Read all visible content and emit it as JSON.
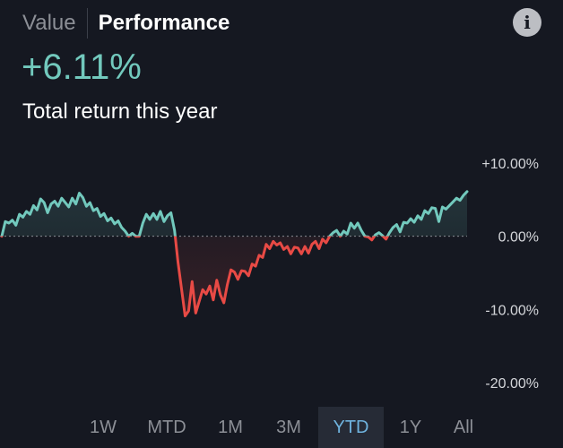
{
  "tabs": {
    "value_label": "Value",
    "performance_label": "Performance",
    "active": "Performance"
  },
  "info_button": {
    "icon": "info-icon",
    "glyph": "i"
  },
  "summary": {
    "return_value": "+6.11%",
    "caption": "Total return this year"
  },
  "colors": {
    "positive": "#72c9bd",
    "negative": "#e84a45",
    "active_range": "#6fb3de",
    "background": "#151821"
  },
  "chart_data": {
    "type": "line",
    "y_tick_labels": [
      "+10.00%",
      "0.00%",
      "-10.00%",
      "-20.00%"
    ],
    "y_ticks": [
      10,
      0,
      -10,
      -20
    ],
    "ylim": [
      -20,
      10
    ],
    "baseline": 0,
    "series": [
      {
        "values": [
          0.0,
          2.0,
          1.8,
          2.2,
          1.5,
          3.0,
          2.6,
          3.4,
          3.0,
          4.2,
          3.6,
          5.1,
          4.6,
          3.2,
          4.4,
          4.8,
          4.1,
          5.2,
          4.6,
          4.0,
          5.2,
          4.4,
          5.9,
          5.3,
          4.1,
          4.6,
          3.5,
          3.8,
          2.7,
          3.1,
          2.1,
          2.5,
          1.7,
          2.1,
          1.2,
          0.7,
          0.0,
          0.4,
          0.0,
          0.0,
          1.8,
          3.0,
          2.3,
          3.1,
          2.3,
          3.4,
          2.0,
          2.8,
          3.2,
          0.8,
          -3.6,
          -7.2,
          -10.9,
          -10.2,
          -6.2,
          -10.5,
          -8.9,
          -7.3,
          -7.9,
          -6.8,
          -8.7,
          -6.0,
          -8.0,
          -9.1,
          -6.6,
          -4.6,
          -4.9,
          -5.9,
          -4.7,
          -4.8,
          -5.4,
          -3.8,
          -4.1,
          -2.6,
          -2.9,
          -1.1,
          -1.7,
          -0.7,
          -1.2,
          -0.9,
          -1.8,
          -1.4,
          -2.4,
          -1.5,
          -1.6,
          -2.4,
          -1.4,
          -2.3,
          -1.1,
          -0.7,
          -1.7,
          -0.4,
          -0.9,
          0.0,
          0.5,
          0.8,
          0.0,
          0.7,
          0.3,
          1.8,
          1.1,
          1.8,
          0.8,
          0.0,
          -0.1,
          -0.5,
          0.2,
          0.5,
          0.1,
          -0.4,
          0.5,
          1.2,
          1.6,
          0.6,
          1.9,
          1.8,
          2.4,
          1.9,
          2.8,
          2.3,
          3.5,
          3.1,
          3.9,
          3.8,
          2.0,
          4.0,
          3.7,
          4.2,
          4.7,
          5.2,
          4.9,
          5.6,
          6.11
        ]
      }
    ]
  },
  "ranges": {
    "items": [
      "1W",
      "MTD",
      "1M",
      "3M",
      "YTD",
      "1Y",
      "All"
    ],
    "selected": "YTD"
  }
}
